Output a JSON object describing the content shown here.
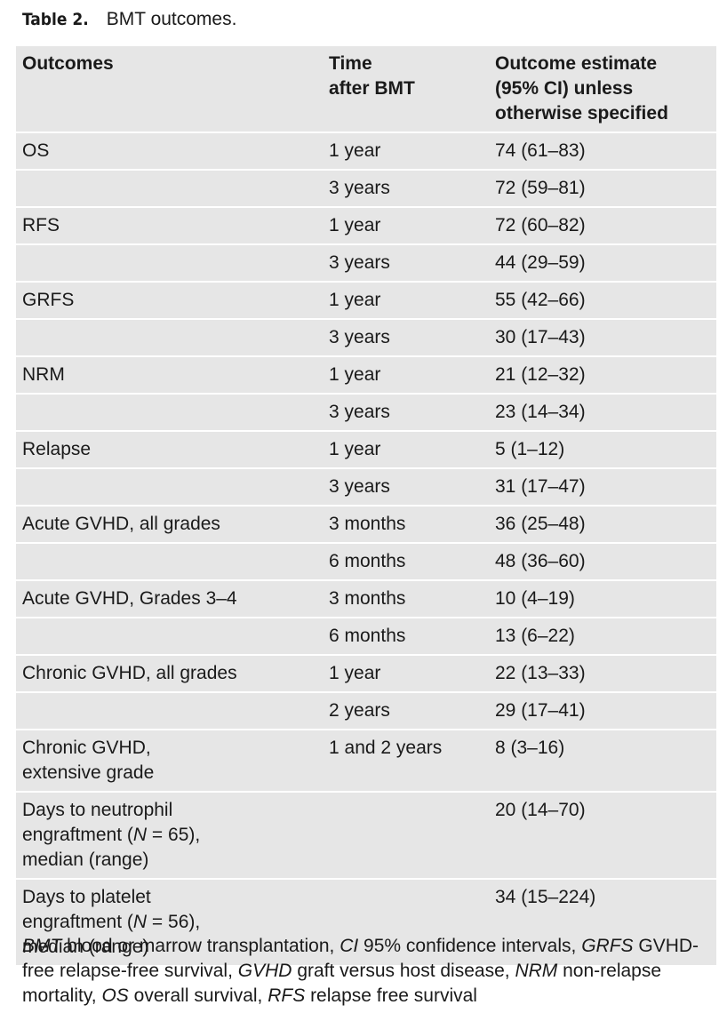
{
  "table_title": {
    "label": "Table 2.",
    "caption": "BMT outcomes."
  },
  "table": {
    "header": [
      "Outcomes",
      "Time\nafter BMT",
      "Outcome estimate\n(95% CI) unless\notherwise specified"
    ],
    "rows": [
      [
        "OS",
        "1 year",
        "74 (61–83)"
      ],
      [
        null,
        "3 years",
        "72 (59–81)"
      ],
      [
        "RFS",
        "1 year",
        "72 (60–82)"
      ],
      [
        null,
        "3 years",
        "44 (29–59)"
      ],
      [
        "GRFS",
        "1 year",
        "55 (42–66)"
      ],
      [
        null,
        "3 years",
        "30 (17–43)"
      ],
      [
        "NRM",
        "1 year",
        "21 (12–32)"
      ],
      [
        null,
        "3 years",
        "23 (14–34)"
      ],
      [
        "Relapse",
        "1 year",
        "5 (1–12)"
      ],
      [
        null,
        "3 years",
        "31 (17–47)"
      ],
      [
        "Acute GVHD, all grades",
        "3 months",
        "36 (25–48)"
      ],
      [
        null,
        "6 months",
        "48 (36–60)"
      ],
      [
        "Acute GVHD, Grades 3–4",
        "3 months",
        "10 (4–19)"
      ],
      [
        null,
        "6 months",
        "13 (6–22)"
      ],
      [
        "Chronic GVHD, all grades",
        "1 year",
        "22 (13–33)"
      ],
      [
        null,
        "2 years",
        "29 (17–41)"
      ],
      [
        "Chronic GVHD,\nextensive grade",
        "1 and 2 years",
        "8 (3–16)"
      ],
      [
        [
          {
            "text": "Days to neutrophil\nengraftment ("
          },
          {
            "text": "N",
            "italic": true
          },
          {
            "text": " = 65),\nmedian (range)"
          }
        ],
        null,
        "20 (14–70)"
      ],
      [
        [
          {
            "text": "Days to platelet\nengraftment ("
          },
          {
            "text": "N",
            "italic": true
          },
          {
            "text": " = 56),\nmedian (range)"
          }
        ],
        null,
        "34 (15–224)"
      ]
    ]
  },
  "footnote": [
    {
      "abbr": "BMT",
      "text": "blood or marrow transplantation,"
    },
    {
      "abbr": "CI",
      "text": "95% confidence intervals,"
    },
    {
      "abbr": "GRFS",
      "text": "GVHD-free relapse-free survival,"
    },
    {
      "abbr": "GVHD",
      "text": "graft versus host disease,"
    },
    {
      "abbr": "NRM",
      "text": "non-relapse mortality,"
    },
    {
      "abbr": "OS",
      "text": "overall survival,"
    },
    {
      "abbr": "RFS",
      "text": "relapse free survival"
    }
  ]
}
